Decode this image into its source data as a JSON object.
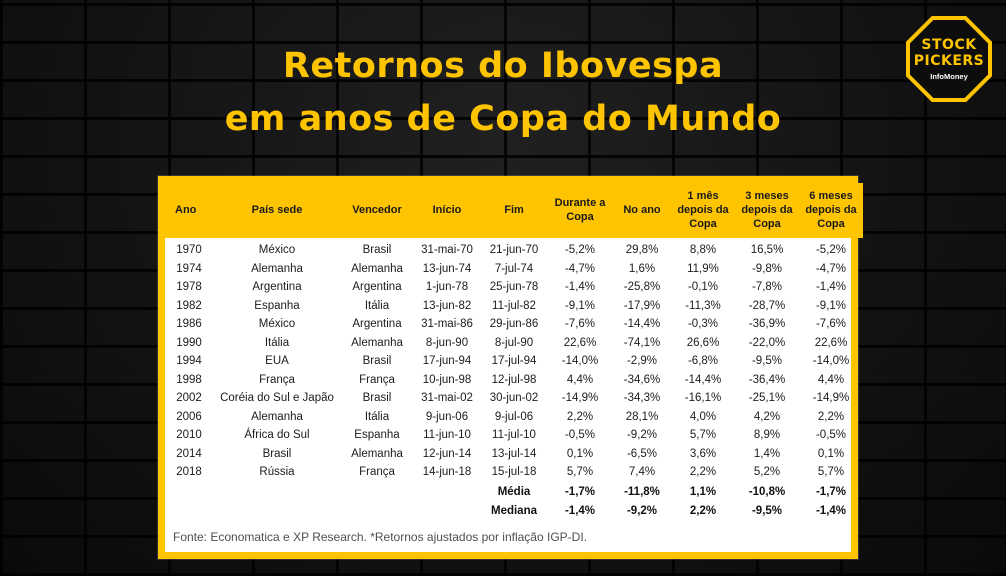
{
  "logo": {
    "line1": "STOCK",
    "line2": "PICKERS",
    "line3": "InfoMoney"
  },
  "title": {
    "line1": "Retornos do Ibovespa",
    "line2": "em anos de Copa do Mundo"
  },
  "colors": {
    "accent": "#FFC400",
    "background": "#0e0e0e",
    "card": "#ffffff"
  },
  "chart_data": {
    "type": "table",
    "title": "Retornos do Ibovespa em anos de Copa do Mundo",
    "headers": [
      "Ano",
      "País sede",
      "Vencedor",
      "Início",
      "Fim",
      "Durante a Copa",
      "No ano",
      "1 mês depois da Copa",
      "3 meses depois da Copa",
      "6 meses depois da Copa"
    ],
    "rows": [
      [
        "1970",
        "México",
        "Brasil",
        "31-mai-70",
        "21-jun-70",
        "-5,2%",
        "29,8%",
        "8,8%",
        "16,5%",
        "-5,2%"
      ],
      [
        "1974",
        "Alemanha",
        "Alemanha",
        "13-jun-74",
        "7-jul-74",
        "-4,7%",
        "1,6%",
        "11,9%",
        "-9,8%",
        "-4,7%"
      ],
      [
        "1978",
        "Argentina",
        "Argentina",
        "1-jun-78",
        "25-jun-78",
        "-1,4%",
        "-25,8%",
        "-0,1%",
        "-7,8%",
        "-1,4%"
      ],
      [
        "1982",
        "Espanha",
        "Itália",
        "13-jun-82",
        "11-jul-82",
        "-9,1%",
        "-17,9%",
        "-11,3%",
        "-28,7%",
        "-9,1%"
      ],
      [
        "1986",
        "México",
        "Argentina",
        "31-mai-86",
        "29-jun-86",
        "-7,6%",
        "-14,4%",
        "-0,3%",
        "-36,9%",
        "-7,6%"
      ],
      [
        "1990",
        "Itália",
        "Alemanha",
        "8-jun-90",
        "8-jul-90",
        "22,6%",
        "-74,1%",
        "26,6%",
        "-22,0%",
        "22,6%"
      ],
      [
        "1994",
        "EUA",
        "Brasil",
        "17-jun-94",
        "17-jul-94",
        "-14,0%",
        "-2,9%",
        "-6,8%",
        "-9,5%",
        "-14,0%"
      ],
      [
        "1998",
        "França",
        "França",
        "10-jun-98",
        "12-jul-98",
        "4,4%",
        "-34,6%",
        "-14,4%",
        "-36,4%",
        "4,4%"
      ],
      [
        "2002",
        "Coréia do Sul e Japão",
        "Brasil",
        "31-mai-02",
        "30-jun-02",
        "-14,9%",
        "-34,3%",
        "-16,1%",
        "-25,1%",
        "-14,9%"
      ],
      [
        "2006",
        "Alemanha",
        "Itália",
        "9-jun-06",
        "9-jul-06",
        "2,2%",
        "28,1%",
        "4,0%",
        "4,2%",
        "2,2%"
      ],
      [
        "2010",
        "África do Sul",
        "Espanha",
        "11-jun-10",
        "11-jul-10",
        "-0,5%",
        "-9,2%",
        "5,7%",
        "8,9%",
        "-0,5%"
      ],
      [
        "2014",
        "Brasil",
        "Alemanha",
        "12-jun-14",
        "13-jul-14",
        "0,1%",
        "-6,5%",
        "3,6%",
        "1,4%",
        "0,1%"
      ],
      [
        "2018",
        "Rússia",
        "França",
        "14-jun-18",
        "15-jul-18",
        "5,7%",
        "7,4%",
        "2,2%",
        "5,2%",
        "5,7%"
      ]
    ],
    "summary": [
      {
        "label": "Média",
        "values": [
          "-1,7%",
          "-11,8%",
          "1,1%",
          "-10,8%",
          "-1,7%"
        ]
      },
      {
        "label": "Mediana",
        "values": [
          "-1,4%",
          "-9,2%",
          "2,2%",
          "-9,5%",
          "-1,4%"
        ]
      }
    ],
    "footnote": "Fonte: Economatica e XP Research. *Retornos ajustados por inflação IGP-DI."
  }
}
